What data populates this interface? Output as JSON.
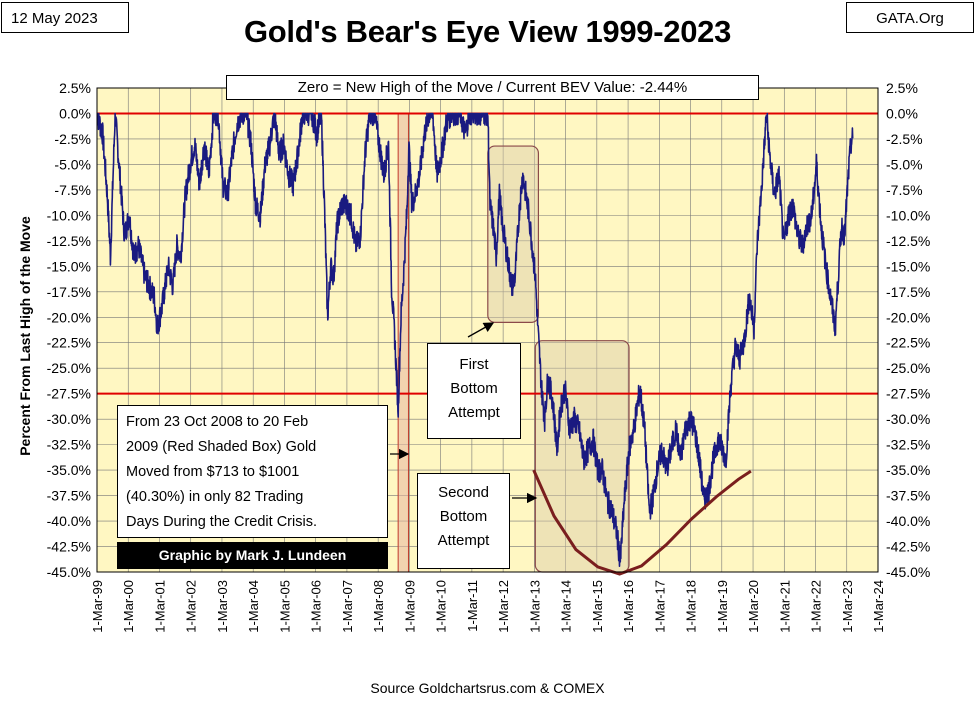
{
  "header": {
    "date": "12 May 2023",
    "brand": "GATA.Org",
    "title": "Gold's Bear's Eye View 1999-2023"
  },
  "annotations": {
    "banner": "Zero = New High of the Move / Current BEV Value:  -2.44%",
    "first_bottom": [
      "First",
      "Bottom",
      "Attempt"
    ],
    "second_bottom": [
      "Second",
      "Bottom",
      "Attempt"
    ],
    "credit_crisis_note": [
      "From 23 Oct 2008  to 20 Feb",
      "2009  (Red Shaded Box)  Gold",
      "Moved from $713  to $1001",
      "(40.30%)  in only 82 Trading",
      "Days During the Credit Crisis."
    ],
    "credit": "Graphic by Mark J. Lundeen",
    "source": "Source Goldchartsrus.com  & COMEX"
  },
  "colors": {
    "plot_background": "#FFF7C2",
    "series": "#1A1A80",
    "reference_lines": "#E00000",
    "shade_box_fill": "#D9C9A8",
    "shade_box_border": "#8B4A4A",
    "curve": "#7A1E1E",
    "grid": "#777777"
  },
  "chart_data": {
    "type": "line",
    "title": "Gold's Bear's Eye View 1999-2023",
    "ylabel": "Percent  From Last High of the Move",
    "xlabel": "",
    "ylim": [
      -45,
      2.5
    ],
    "yticks": [
      "2.5%",
      "0.0%",
      "-2.5%",
      "-5.0%",
      "-7.5%",
      "-10.0%",
      "-12.5%",
      "-15.0%",
      "-17.5%",
      "-20.0%",
      "-22.5%",
      "-25.0%",
      "-27.5%",
      "-30.0%",
      "-32.5%",
      "-35.0%",
      "-37.5%",
      "-40.0%",
      "-42.5%",
      "-45.0%"
    ],
    "xticks": [
      "1-Mar-99",
      "1-Mar-00",
      "1-Mar-01",
      "1-Mar-02",
      "1-Mar-03",
      "1-Mar-04",
      "1-Mar-05",
      "1-Mar-06",
      "1-Mar-07",
      "1-Mar-08",
      "1-Mar-09",
      "1-Mar-10",
      "1-Mar-11",
      "1-Mar-12",
      "1-Mar-13",
      "1-Mar-14",
      "1-Mar-15",
      "1-Mar-16",
      "1-Mar-17",
      "1-Mar-18",
      "1-Mar-19",
      "1-Mar-20",
      "1-Mar-21",
      "1-Mar-22",
      "1-Mar-23",
      "1-Mar-24"
    ],
    "xlim": [
      1999.17,
      2024.17
    ],
    "grid": true,
    "reference_lines": [
      0,
      -27.5
    ],
    "series": [
      {
        "values": [
          [
            1999.17,
            0
          ],
          [
            1999.35,
            -2
          ],
          [
            1999.5,
            -8
          ],
          [
            1999.6,
            -14
          ],
          [
            1999.75,
            0
          ],
          [
            1999.9,
            -6
          ],
          [
            2000.05,
            -12
          ],
          [
            2000.2,
            -10
          ],
          [
            2000.35,
            -14
          ],
          [
            2000.5,
            -13
          ],
          [
            2000.7,
            -16
          ],
          [
            2000.85,
            -17
          ],
          [
            2001.0,
            -18
          ],
          [
            2001.1,
            -21
          ],
          [
            2001.25,
            -19
          ],
          [
            2001.45,
            -15
          ],
          [
            2001.6,
            -17
          ],
          [
            2001.72,
            -13
          ],
          [
            2001.85,
            -14
          ],
          [
            2002.0,
            -8
          ],
          [
            2002.15,
            -5
          ],
          [
            2002.3,
            -3
          ],
          [
            2002.45,
            -7
          ],
          [
            2002.6,
            -3
          ],
          [
            2002.75,
            -6
          ],
          [
            2002.9,
            0
          ],
          [
            2003.05,
            0
          ],
          [
            2003.2,
            -7
          ],
          [
            2003.35,
            -8
          ],
          [
            2003.5,
            -4
          ],
          [
            2003.65,
            -1
          ],
          [
            2003.8,
            0
          ],
          [
            2003.95,
            0
          ],
          [
            2004.1,
            -3
          ],
          [
            2004.25,
            -9
          ],
          [
            2004.4,
            -10
          ],
          [
            2004.55,
            -5
          ],
          [
            2004.7,
            -3
          ],
          [
            2004.85,
            0
          ],
          [
            2005.0,
            -4
          ],
          [
            2005.15,
            -3
          ],
          [
            2005.3,
            -6
          ],
          [
            2005.45,
            -7
          ],
          [
            2005.6,
            -4
          ],
          [
            2005.75,
            0
          ],
          [
            2005.9,
            0
          ],
          [
            2006.05,
            0
          ],
          [
            2006.2,
            -2
          ],
          [
            2006.35,
            0
          ],
          [
            2006.45,
            -9
          ],
          [
            2006.55,
            -20
          ],
          [
            2006.65,
            -15
          ],
          [
            2006.75,
            -16
          ],
          [
            2006.85,
            -11
          ],
          [
            2007.0,
            -9
          ],
          [
            2007.15,
            -9
          ],
          [
            2007.3,
            -10
          ],
          [
            2007.45,
            -13
          ],
          [
            2007.6,
            -12
          ],
          [
            2007.75,
            -4
          ],
          [
            2007.9,
            0
          ],
          [
            2008.05,
            0
          ],
          [
            2008.2,
            -3
          ],
          [
            2008.35,
            -6
          ],
          [
            2008.5,
            -3
          ],
          [
            2008.6,
            -17
          ],
          [
            2008.7,
            -22
          ],
          [
            2008.81,
            -29
          ],
          [
            2008.9,
            -20
          ],
          [
            2009.0,
            -15
          ],
          [
            2009.1,
            -9
          ],
          [
            2009.15,
            -3
          ],
          [
            2009.25,
            -9
          ],
          [
            2009.35,
            -8
          ],
          [
            2009.5,
            -6
          ],
          [
            2009.65,
            -2
          ],
          [
            2009.8,
            0
          ],
          [
            2009.92,
            0
          ],
          [
            2010.05,
            -6
          ],
          [
            2010.2,
            -4
          ],
          [
            2010.35,
            -1
          ],
          [
            2010.5,
            0
          ],
          [
            2010.65,
            0
          ],
          [
            2010.8,
            0
          ],
          [
            2010.95,
            -2
          ],
          [
            2011.1,
            0
          ],
          [
            2011.25,
            0
          ],
          [
            2011.4,
            0
          ],
          [
            2011.55,
            0
          ],
          [
            2011.68,
            0
          ],
          [
            2011.75,
            -9
          ],
          [
            2011.85,
            -11
          ],
          [
            2011.95,
            -14
          ],
          [
            2012.05,
            -8
          ],
          [
            2012.15,
            -11
          ],
          [
            2012.3,
            -14
          ],
          [
            2012.45,
            -17
          ],
          [
            2012.55,
            -16
          ],
          [
            2012.7,
            -9
          ],
          [
            2012.8,
            -6
          ],
          [
            2012.9,
            -8
          ],
          [
            2013.0,
            -10
          ],
          [
            2013.1,
            -13
          ],
          [
            2013.2,
            -16
          ],
          [
            2013.3,
            -22
          ],
          [
            2013.4,
            -27
          ],
          [
            2013.5,
            -30
          ],
          [
            2013.6,
            -26
          ],
          [
            2013.75,
            -28
          ],
          [
            2013.9,
            -33
          ],
          [
            2014.0,
            -29
          ],
          [
            2014.15,
            -27
          ],
          [
            2014.3,
            -31
          ],
          [
            2014.45,
            -30
          ],
          [
            2014.6,
            -31
          ],
          [
            2014.75,
            -34
          ],
          [
            2014.9,
            -33
          ],
          [
            2015.05,
            -32
          ],
          [
            2015.2,
            -35
          ],
          [
            2015.35,
            -35
          ],
          [
            2015.5,
            -38
          ],
          [
            2015.65,
            -39
          ],
          [
            2015.8,
            -41
          ],
          [
            2015.92,
            -44
          ],
          [
            2016.05,
            -38
          ],
          [
            2016.2,
            -33
          ],
          [
            2016.35,
            -31
          ],
          [
            2016.55,
            -27
          ],
          [
            2016.7,
            -31
          ],
          [
            2016.85,
            -39
          ],
          [
            2016.95,
            -38
          ],
          [
            2017.1,
            -35
          ],
          [
            2017.25,
            -33
          ],
          [
            2017.4,
            -35
          ],
          [
            2017.55,
            -33
          ],
          [
            2017.7,
            -31
          ],
          [
            2017.85,
            -34
          ],
          [
            2018.0,
            -31
          ],
          [
            2018.15,
            -30
          ],
          [
            2018.3,
            -31
          ],
          [
            2018.45,
            -34
          ],
          [
            2018.6,
            -38
          ],
          [
            2018.75,
            -37
          ],
          [
            2018.9,
            -34
          ],
          [
            2019.05,
            -32
          ],
          [
            2019.2,
            -33
          ],
          [
            2019.3,
            -34
          ],
          [
            2019.45,
            -27
          ],
          [
            2019.6,
            -23
          ],
          [
            2019.75,
            -24
          ],
          [
            2019.9,
            -22
          ],
          [
            2020.05,
            -18
          ],
          [
            2020.2,
            -21
          ],
          [
            2020.3,
            -13
          ],
          [
            2020.45,
            -7
          ],
          [
            2020.6,
            0
          ],
          [
            2020.7,
            -4
          ],
          [
            2020.85,
            -8
          ],
          [
            2021.0,
            -6
          ],
          [
            2021.15,
            -13
          ],
          [
            2021.3,
            -10
          ],
          [
            2021.45,
            -9
          ],
          [
            2021.6,
            -12
          ],
          [
            2021.75,
            -13
          ],
          [
            2021.9,
            -11
          ],
          [
            2022.05,
            -10
          ],
          [
            2022.2,
            -5
          ],
          [
            2022.35,
            -11
          ],
          [
            2022.5,
            -15
          ],
          [
            2022.65,
            -18
          ],
          [
            2022.8,
            -21
          ],
          [
            2022.9,
            -16
          ],
          [
            2023.0,
            -11
          ],
          [
            2023.1,
            -12
          ],
          [
            2023.2,
            -7
          ],
          [
            2023.3,
            -3
          ],
          [
            2023.36,
            -2.44
          ]
        ]
      }
    ],
    "shaded_regions": [
      {
        "x": [
          2008.81,
          2009.14
        ],
        "y": [
          -45,
          0
        ],
        "style": "red"
      },
      {
        "x": [
          2011.68,
          2013.3
        ],
        "y": [
          -20.5,
          -3.2
        ],
        "style": "box"
      },
      {
        "x": [
          2013.2,
          2016.2
        ],
        "y": [
          -45,
          -22.3
        ],
        "style": "box"
      }
    ],
    "trend_curve": [
      [
        2013.15,
        -35
      ],
      [
        2013.8,
        -39.5
      ],
      [
        2014.5,
        -42.8
      ],
      [
        2015.2,
        -44.5
      ],
      [
        2015.9,
        -45.2
      ],
      [
        2016.6,
        -44.4
      ],
      [
        2017.4,
        -42.3
      ],
      [
        2018.2,
        -39.8
      ],
      [
        2019.0,
        -37.6
      ],
      [
        2019.7,
        -35.9
      ],
      [
        2020.1,
        -35.1
      ]
    ]
  }
}
